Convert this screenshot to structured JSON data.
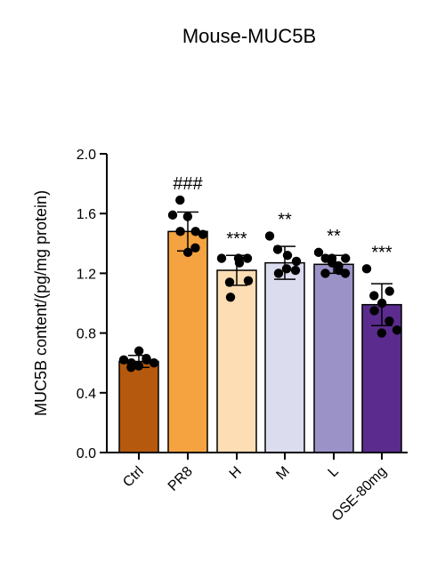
{
  "chart_data": {
    "type": "bar",
    "title": "Mouse-MUC5B",
    "ylabel": "MUC5B content/(pg/mg protein)",
    "xlabel": "",
    "ylim": [
      0.0,
      2.0
    ],
    "yticks": [
      "0.0",
      "0.4",
      "0.8",
      "1.2",
      "1.6",
      "2.0"
    ],
    "categories": [
      "Ctrl",
      "PR8",
      "H",
      "M",
      "L",
      "OSE-80mg"
    ],
    "values": [
      0.61,
      1.48,
      1.22,
      1.27,
      1.26,
      0.99
    ],
    "errors": [
      0.04,
      0.13,
      0.1,
      0.11,
      0.06,
      0.14
    ],
    "significance": [
      "",
      "###",
      "***",
      "**",
      "**",
      "***"
    ],
    "colors": [
      "#B5590E",
      "#F4A340",
      "#FDDDB3",
      "#DBDCEE",
      "#9B93C8",
      "#5B2C8E"
    ],
    "points": [
      [
        0.62,
        0.57,
        0.6,
        0.58,
        0.68,
        0.63,
        0.62,
        0.6
      ],
      [
        1.59,
        1.69,
        1.48,
        1.58,
        1.34,
        1.37,
        1.48,
        1.46
      ],
      [
        1.3,
        1.14,
        1.04,
        1.3,
        1.27,
        1.3,
        1.15
      ],
      [
        1.45,
        1.36,
        1.2,
        1.23,
        1.32,
        1.22,
        1.28
      ],
      [
        1.34,
        1.3,
        1.2,
        1.27,
        1.3,
        1.22,
        1.25,
        1.3,
        1.2
      ],
      [
        1.23,
        1.05,
        0.95,
        0.8,
        1.0,
        0.88,
        1.08,
        0.82
      ]
    ],
    "grid": false,
    "legend": "none"
  }
}
